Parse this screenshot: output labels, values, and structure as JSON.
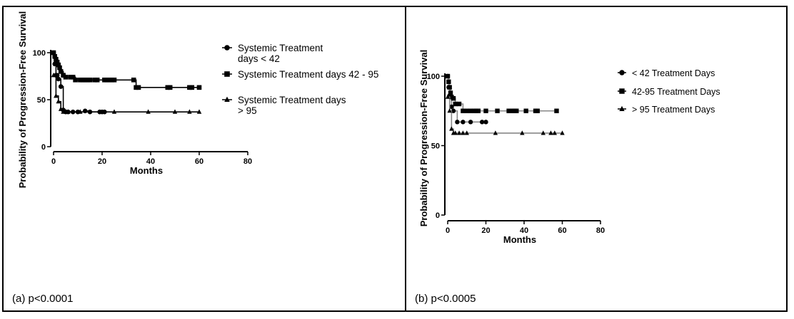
{
  "chart_data": [
    {
      "type": "line",
      "panel_caption": "(a) p<0.0001",
      "xlabel": "Months",
      "ylabel": "Probability of Progression-Free Survival",
      "xlim": [
        0,
        80
      ],
      "ylim": [
        0,
        100
      ],
      "xticks": [
        0,
        20,
        40,
        60,
        80
      ],
      "yticks": [
        0,
        50,
        100
      ],
      "legend_position": "right",
      "series": [
        {
          "name": "Systemic Treatment days < 42",
          "legend_lines": [
            "Systemic Treatment",
            "days < 42"
          ],
          "marker": "circle",
          "x": [
            0,
            0.5,
            1,
            1.5,
            2,
            3,
            4,
            5,
            6,
            8,
            10,
            13,
            15,
            19,
            20,
            21
          ],
          "y": [
            100,
            88,
            76,
            76,
            72,
            64,
            39,
            37,
            37,
            37,
            37,
            38,
            37,
            37,
            37,
            37
          ]
        },
        {
          "name": "Systemic Treatment days 42 - 95",
          "legend_lines": [
            "Systemic Treatment days 42 - 95"
          ],
          "marker": "square",
          "x": [
            0,
            0.5,
            1,
            1.5,
            2,
            2.5,
            3,
            4,
            5,
            7,
            8,
            9,
            11,
            12,
            13,
            14,
            15,
            17,
            18,
            21,
            22,
            23,
            24,
            25,
            33,
            34,
            35,
            47,
            48,
            56,
            57,
            60
          ],
          "y": [
            100,
            96,
            93,
            90,
            87,
            84,
            80,
            76,
            74,
            74,
            74,
            71,
            71,
            71,
            71,
            71,
            71,
            71,
            71,
            71,
            71,
            71,
            71,
            71,
            71,
            63,
            63,
            63,
            63,
            63,
            63,
            63
          ]
        },
        {
          "name": "Systemic Treatment days > 95",
          "legend_lines": [
            "Systemic Treatment days",
            "> 95"
          ],
          "marker": "triangle",
          "x": [
            0,
            1,
            2,
            3,
            4,
            5,
            6,
            11,
            25,
            39,
            50,
            56,
            60
          ],
          "y": [
            76,
            54,
            48,
            40,
            37,
            37,
            37,
            37,
            37,
            37,
            37,
            37,
            37
          ]
        }
      ]
    },
    {
      "type": "line",
      "panel_caption": "(b) p<0.0005",
      "xlabel": "Months",
      "ylabel": "Probability of Progression-Free Survival",
      "xlim": [
        0,
        80
      ],
      "ylim": [
        0,
        100
      ],
      "xticks": [
        0,
        20,
        40,
        60,
        80
      ],
      "yticks": [
        0,
        50,
        100
      ],
      "legend_position": "right",
      "series": [
        {
          "name": "< 42 Treatment Days",
          "legend_lines": [
            "< 42 Treatment Days"
          ],
          "marker": "circle",
          "x": [
            0,
            0.5,
            1,
            2,
            3,
            5,
            8,
            12,
            18,
            20
          ],
          "y": [
            100,
            92,
            86,
            78,
            75,
            67,
            67,
            67,
            67,
            67
          ]
        },
        {
          "name": "42-95 Treatment Days",
          "legend_lines": [
            "42-95 Treatment Days"
          ],
          "marker": "square",
          "x": [
            0,
            0.5,
            1,
            1.5,
            2,
            3,
            4,
            6,
            8,
            10,
            12,
            14,
            15,
            16,
            20,
            26,
            32,
            34,
            35,
            36,
            41,
            46,
            47,
            57
          ],
          "y": [
            100,
            96,
            92,
            88,
            85,
            84,
            80,
            80,
            75,
            75,
            75,
            75,
            75,
            75,
            75,
            75,
            75,
            75,
            75,
            75,
            75,
            75,
            75,
            75
          ]
        },
        {
          "name": "> 95 Treatment Days",
          "legend_lines": [
            "> 95 Treatment Days"
          ],
          "marker": "triangle",
          "x": [
            0,
            1,
            2,
            3,
            4,
            6,
            8,
            10,
            25,
            39,
            50,
            54,
            56,
            60
          ],
          "y": [
            85,
            75,
            62,
            59,
            59,
            59,
            59,
            59,
            59,
            59,
            59,
            59,
            59,
            59
          ]
        }
      ]
    }
  ]
}
